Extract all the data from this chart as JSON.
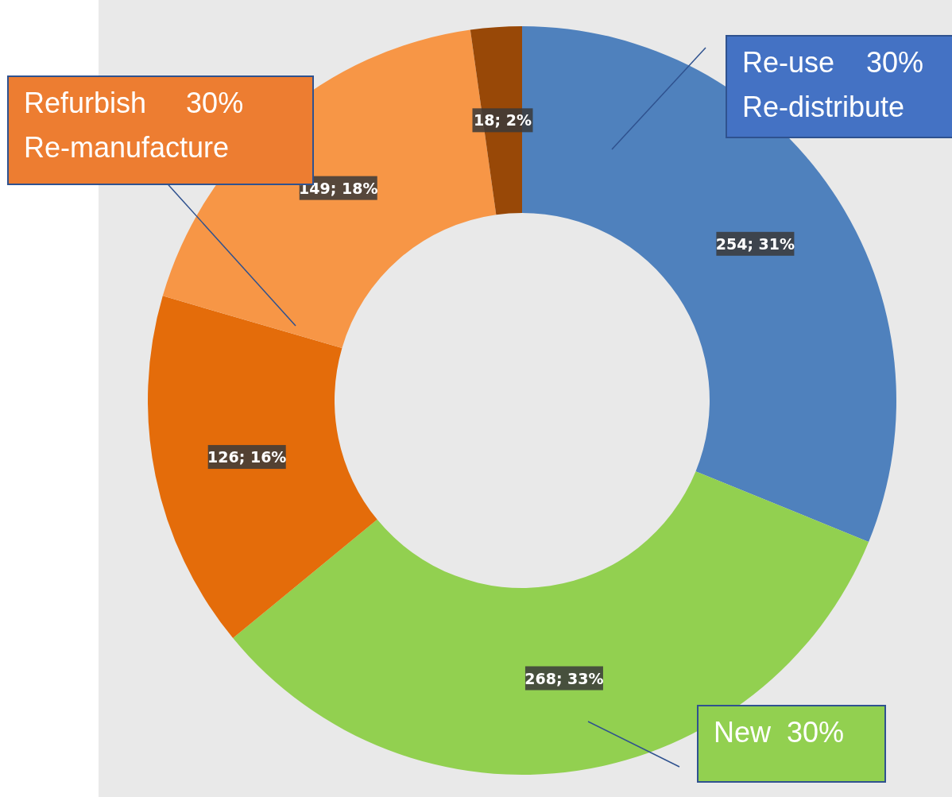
{
  "chart_data": {
    "type": "donut",
    "categories": [
      null,
      null,
      null,
      null,
      null
    ],
    "values": [
      254,
      268,
      126,
      149,
      18
    ],
    "colors": [
      "#4f81bd",
      "#92d050",
      "#e46c0a",
      "#f79646",
      "#984807"
    ],
    "value_labels": [
      "254; 31%",
      "268; 33%",
      "126; 16%",
      "149; 18%",
      "18; 2%"
    ],
    "annotations": [
      "Re-use    30%\nRe-distribute",
      "New  30%",
      "Refurbish     30%\nRe-manufacture"
    ]
  }
}
